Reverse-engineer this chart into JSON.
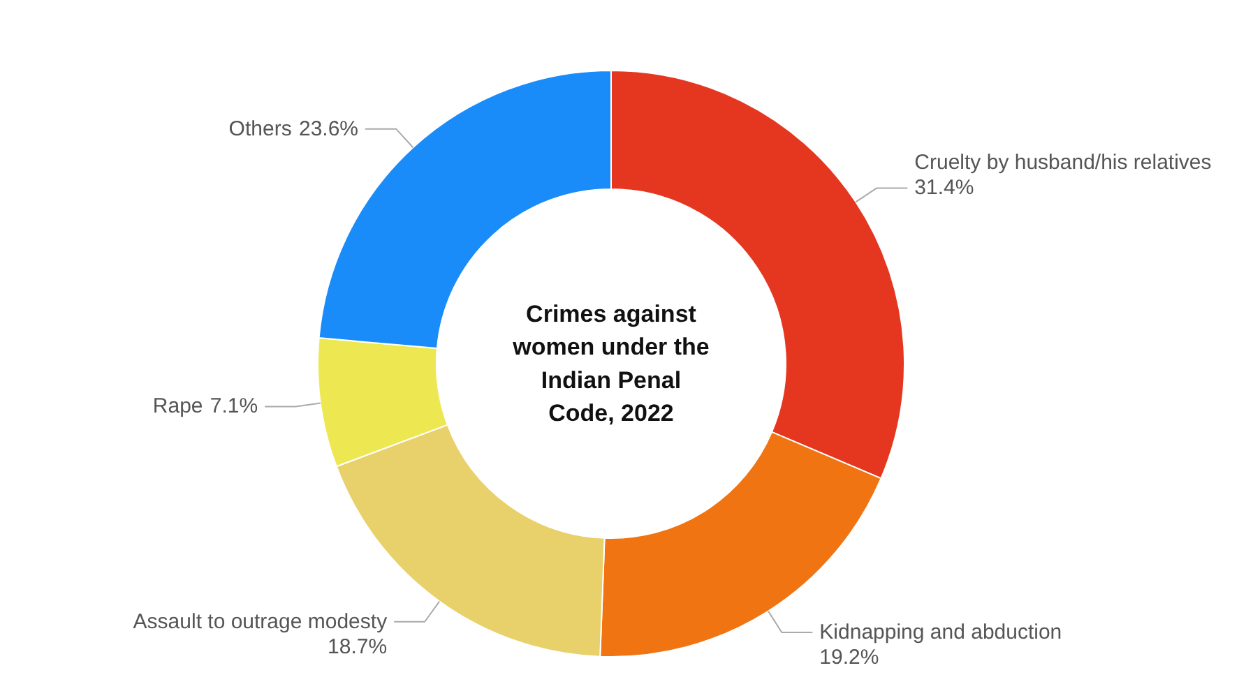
{
  "chart_data": {
    "type": "donut",
    "title": "Crimes against women under the Indian Penal Code, 2022",
    "categories": [
      "Cruelty by husband/his relatives",
      "Kidnapping and abduction",
      "Assault to outrage modesty",
      "Rape",
      "Others"
    ],
    "values": [
      31.4,
      19.2,
      18.7,
      7.1,
      23.6
    ],
    "colors": [
      "#e5361f",
      "#f07412",
      "#e8d06a",
      "#ede851",
      "#1a8cfa"
    ],
    "value_labels": [
      "31.4%",
      "19.2%",
      "18.7%",
      "7.1%",
      "23.6%"
    ]
  }
}
